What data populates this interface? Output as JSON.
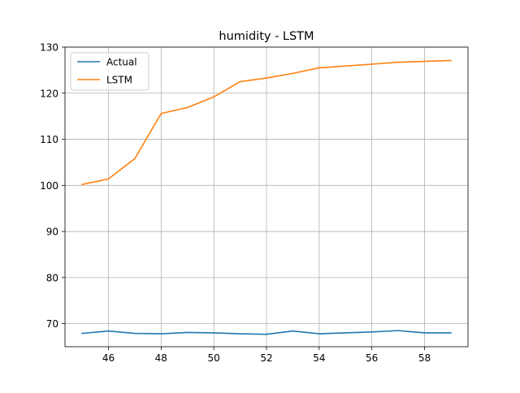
{
  "chart_data": {
    "type": "line",
    "title": "humidity - LSTM",
    "xlabel": "",
    "ylabel": "",
    "xlim": [
      44.35,
      59.65
    ],
    "ylim": [
      65,
      130
    ],
    "xticks": [
      46,
      48,
      50,
      52,
      54,
      56,
      58
    ],
    "yticks": [
      70,
      80,
      90,
      100,
      110,
      120,
      130
    ],
    "grid": true,
    "legend_position": "top-left",
    "x": [
      45,
      46,
      47,
      48,
      49,
      50,
      51,
      52,
      53,
      54,
      55,
      56,
      57,
      58,
      59
    ],
    "series": [
      {
        "name": "Actual",
        "color": "#1f77b4",
        "values": [
          67.9,
          68.4,
          67.9,
          67.8,
          68.1,
          68.0,
          67.8,
          67.7,
          68.4,
          67.8,
          68.0,
          68.2,
          68.5,
          68.0,
          68.0
        ]
      },
      {
        "name": "LSTM",
        "color": "#ff7f0e",
        "values": [
          100.2,
          101.4,
          105.8,
          115.6,
          116.9,
          119.2,
          122.5,
          123.3,
          124.3,
          125.5,
          125.9,
          126.3,
          126.7,
          126.9,
          127.1
        ]
      }
    ]
  }
}
